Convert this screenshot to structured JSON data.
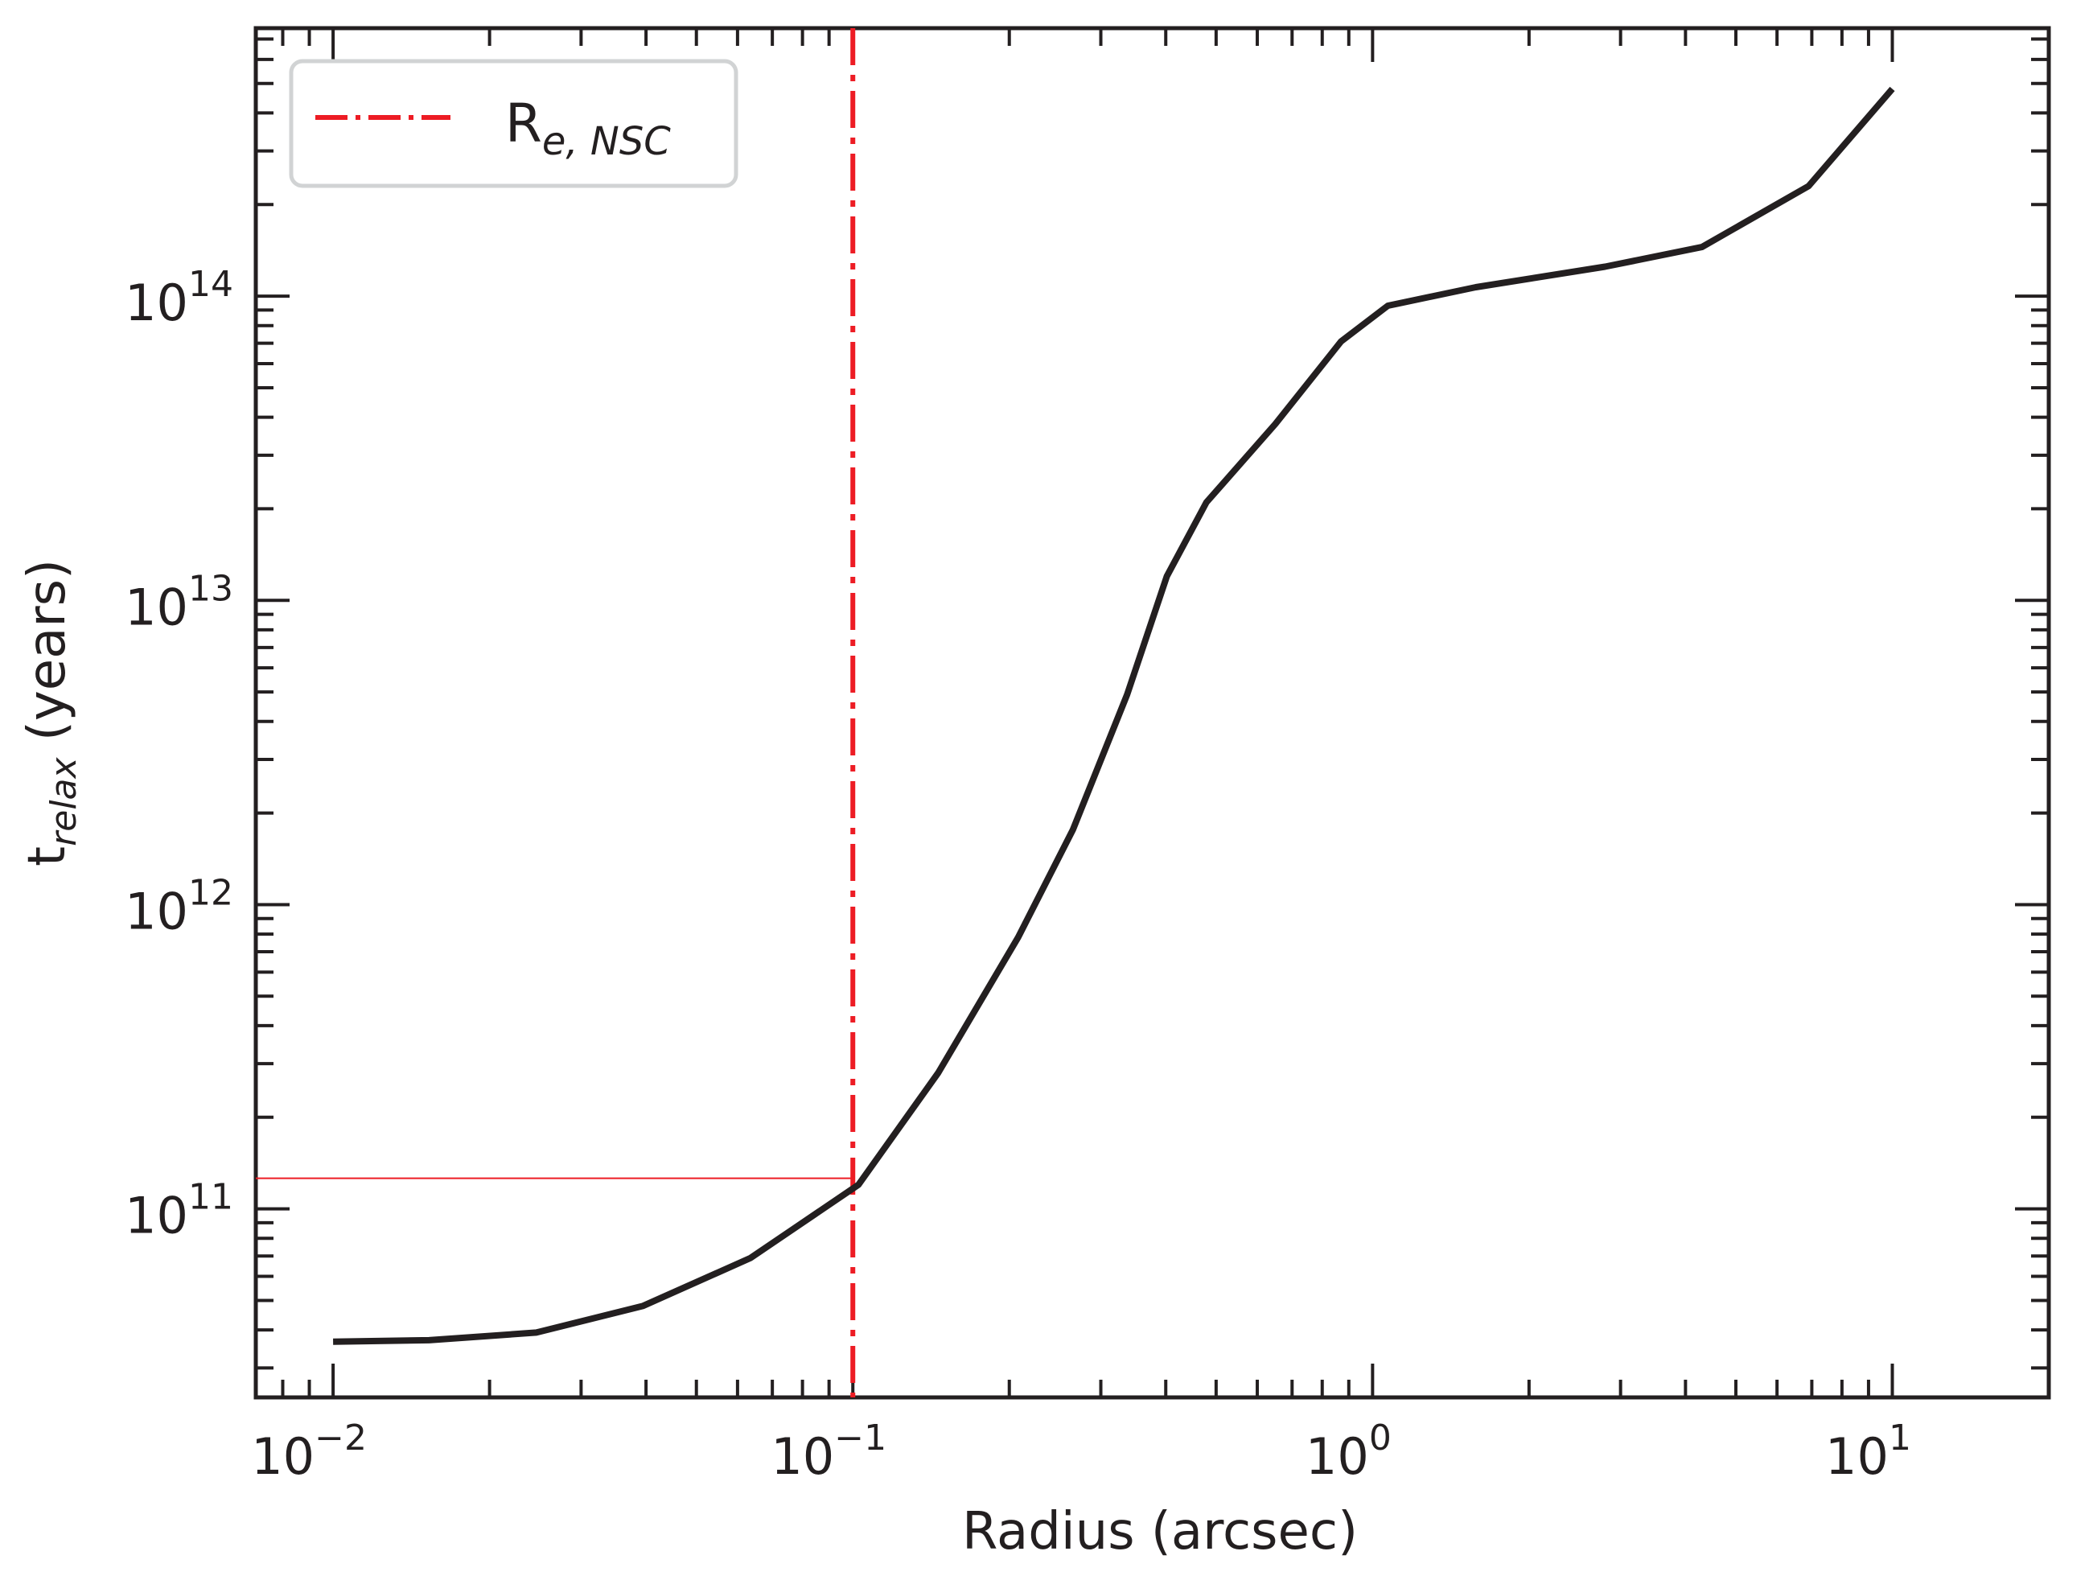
{
  "chart_data": {
    "type": "line",
    "title": "",
    "xlabel": "Radius (arcsec)",
    "ylabel_main": "t",
    "ylabel_sub": "relax",
    "ylabel_unit": " (years)",
    "xscale": "log",
    "yscale": "log",
    "xlim": [
      0.0071,
      20
    ],
    "ylim": [
      24000000000.0,
      760000000000000.0
    ],
    "grid": false,
    "legend_position": "upper left",
    "x_ticks": [
      {
        "base": "10",
        "exp": "−2",
        "value": 0.01
      },
      {
        "base": "10",
        "exp": "−1",
        "value": 0.1
      },
      {
        "base": "10",
        "exp": "0",
        "value": 1
      },
      {
        "base": "10",
        "exp": "1",
        "value": 10
      }
    ],
    "y_ticks": [
      {
        "base": "10",
        "exp": "11",
        "value": 100000000000.0
      },
      {
        "base": "10",
        "exp": "12",
        "value": 1000000000000.0
      },
      {
        "base": "10",
        "exp": "13",
        "value": 10000000000000.0
      },
      {
        "base": "10",
        "exp": "14",
        "value": 100000000000000.0
      }
    ],
    "series": [
      {
        "name": "t_relax",
        "color": "#231f20",
        "x": [
          0.01,
          0.0153,
          0.0246,
          0.0395,
          0.0636,
          0.1025,
          0.146,
          0.208,
          0.265,
          0.337,
          0.402,
          0.479,
          0.65,
          0.87,
          1.07,
          1.58,
          2.8,
          4.3,
          6.9,
          10.0
        ],
        "y": [
          36600000000.0,
          37000000000.0,
          39200000000.0,
          48000000000.0,
          69000000000.0,
          120000000000.0,
          280000000000.0,
          780000000000.0,
          1760000000000.0,
          4900000000000.0,
          12000000000000.0,
          21000000000000.0,
          38000000000000.0,
          71000000000000.0,
          93000000000000.0,
          107000000000000.0,
          125000000000000.0,
          145000000000000.0,
          230000000000000.0,
          480000000000000.0
        ]
      }
    ],
    "annotations": [
      {
        "type": "vline",
        "x": 0.1,
        "style": "dash-dot",
        "color": "#ed1c24",
        "label_main": "R",
        "label_sub": "e, NSC"
      },
      {
        "type": "hline",
        "y": 126000000000.0,
        "x_from": 0.0071,
        "x_to": 0.1,
        "style": "solid-thin",
        "color": "#ed1c24"
      }
    ],
    "legend": [
      {
        "label_main": "R",
        "label_sub": "e, NSC",
        "color": "#ed1c24",
        "style": "dash-dot"
      }
    ]
  }
}
